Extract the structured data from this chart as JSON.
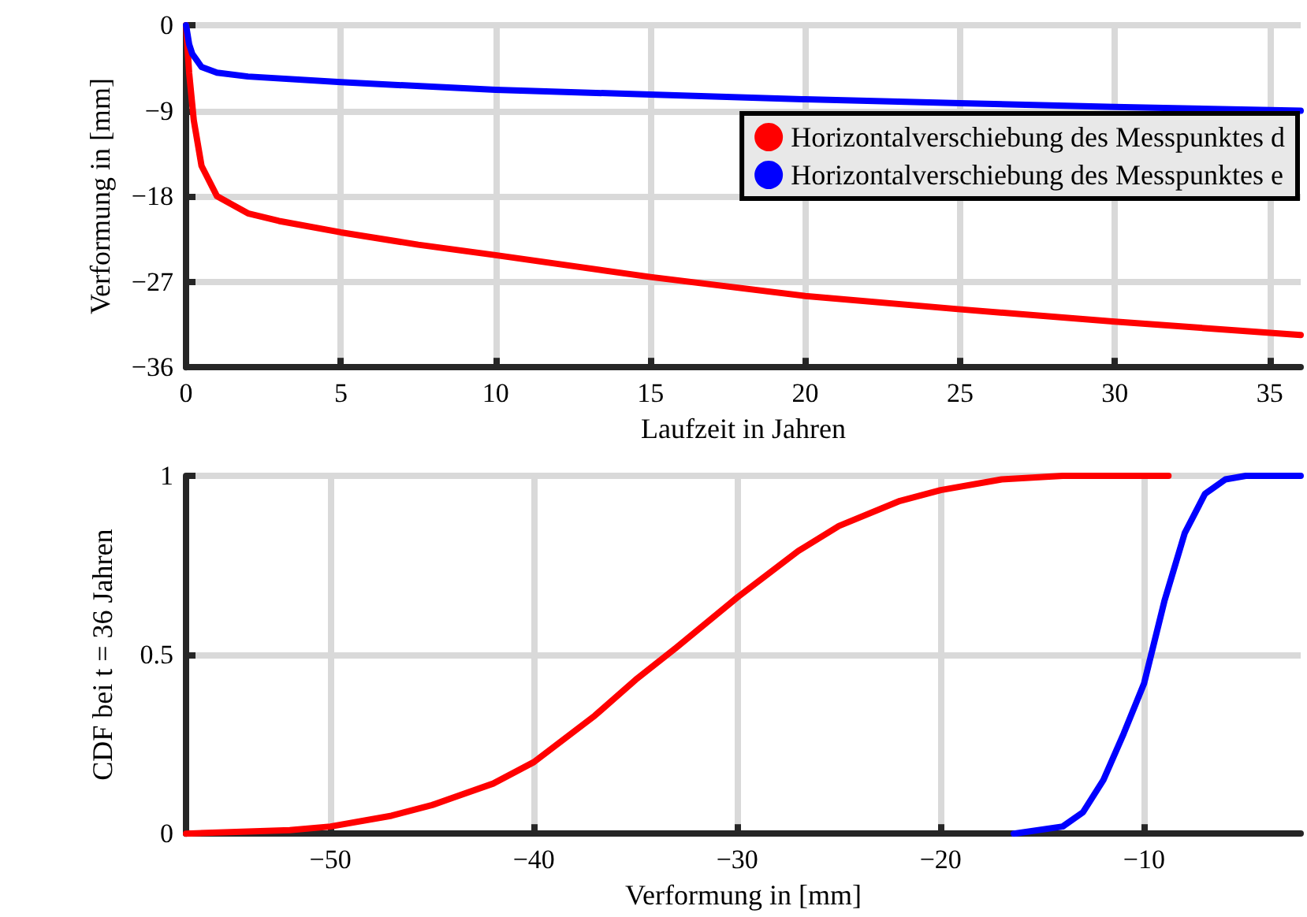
{
  "chart_data": [
    {
      "type": "line",
      "xlabel": "Laufzeit in Jahren",
      "ylabel": "Verformung in [mm]",
      "xlim": [
        0,
        36
      ],
      "xticks": [
        0,
        5,
        10,
        15,
        20,
        25,
        30,
        35
      ],
      "ylim": [
        -36,
        0
      ],
      "yticks": [
        -36,
        -27,
        -18,
        -9,
        0
      ],
      "grid": true,
      "legend": "top right",
      "marker": "none",
      "line_style": "solid",
      "series": [
        {
          "name": "Horizontalverschiebung des Messpunktes d",
          "color": "#ff0000",
          "x": [
            0,
            0.1,
            0.25,
            0.5,
            1,
            2,
            3,
            5,
            7.5,
            10,
            15,
            20,
            25,
            30,
            36
          ],
          "values": [
            0,
            -5,
            -10,
            -14.8,
            -18,
            -19.8,
            -20.6,
            -21.8,
            -23.1,
            -24.2,
            -26.5,
            -28.5,
            -29.9,
            -31.2,
            -32.6
          ]
        },
        {
          "name": "Horizontalverschiebung des Messpunktes e",
          "color": "#0000ff",
          "x": [
            0,
            0.1,
            0.2,
            0.5,
            1,
            2,
            5,
            10,
            15,
            20,
            25,
            30,
            36
          ],
          "values": [
            0,
            -2,
            -3,
            -4.4,
            -5,
            -5.4,
            -6,
            -6.8,
            -7.3,
            -7.8,
            -8.2,
            -8.6,
            -9
          ]
        }
      ]
    },
    {
      "type": "line",
      "xlabel": "Verformung in [mm]",
      "ylabel": "CDF bei t = 36 Jahren",
      "xlim": [
        -57.1,
        -2.3
      ],
      "xticks": [
        -50,
        -40,
        -30,
        -20,
        -10
      ],
      "ylim": [
        0,
        1
      ],
      "yticks": [
        0,
        0.5,
        1
      ],
      "grid": true,
      "marker": "none",
      "line_style": "solid",
      "series": [
        {
          "color": "#ff0000",
          "x": [
            -57.1,
            -52,
            -50,
            -47,
            -45,
            -42,
            -40,
            -37,
            -35,
            -33,
            -30,
            -27,
            -25,
            -22,
            -20,
            -17,
            -14,
            -8.8
          ],
          "values": [
            0,
            0.01,
            0.02,
            0.05,
            0.08,
            0.14,
            0.2,
            0.33,
            0.43,
            0.52,
            0.66,
            0.79,
            0.86,
            0.93,
            0.96,
            0.99,
            1,
            1
          ]
        },
        {
          "color": "#0000ff",
          "x": [
            -16.4,
            -14,
            -13,
            -12,
            -11,
            -10,
            -9,
            -8,
            -7,
            -6,
            -5,
            -2.3
          ],
          "values": [
            0,
            0.02,
            0.06,
            0.15,
            0.28,
            0.42,
            0.65,
            0.84,
            0.95,
            0.99,
            1,
            1
          ]
        }
      ]
    }
  ]
}
